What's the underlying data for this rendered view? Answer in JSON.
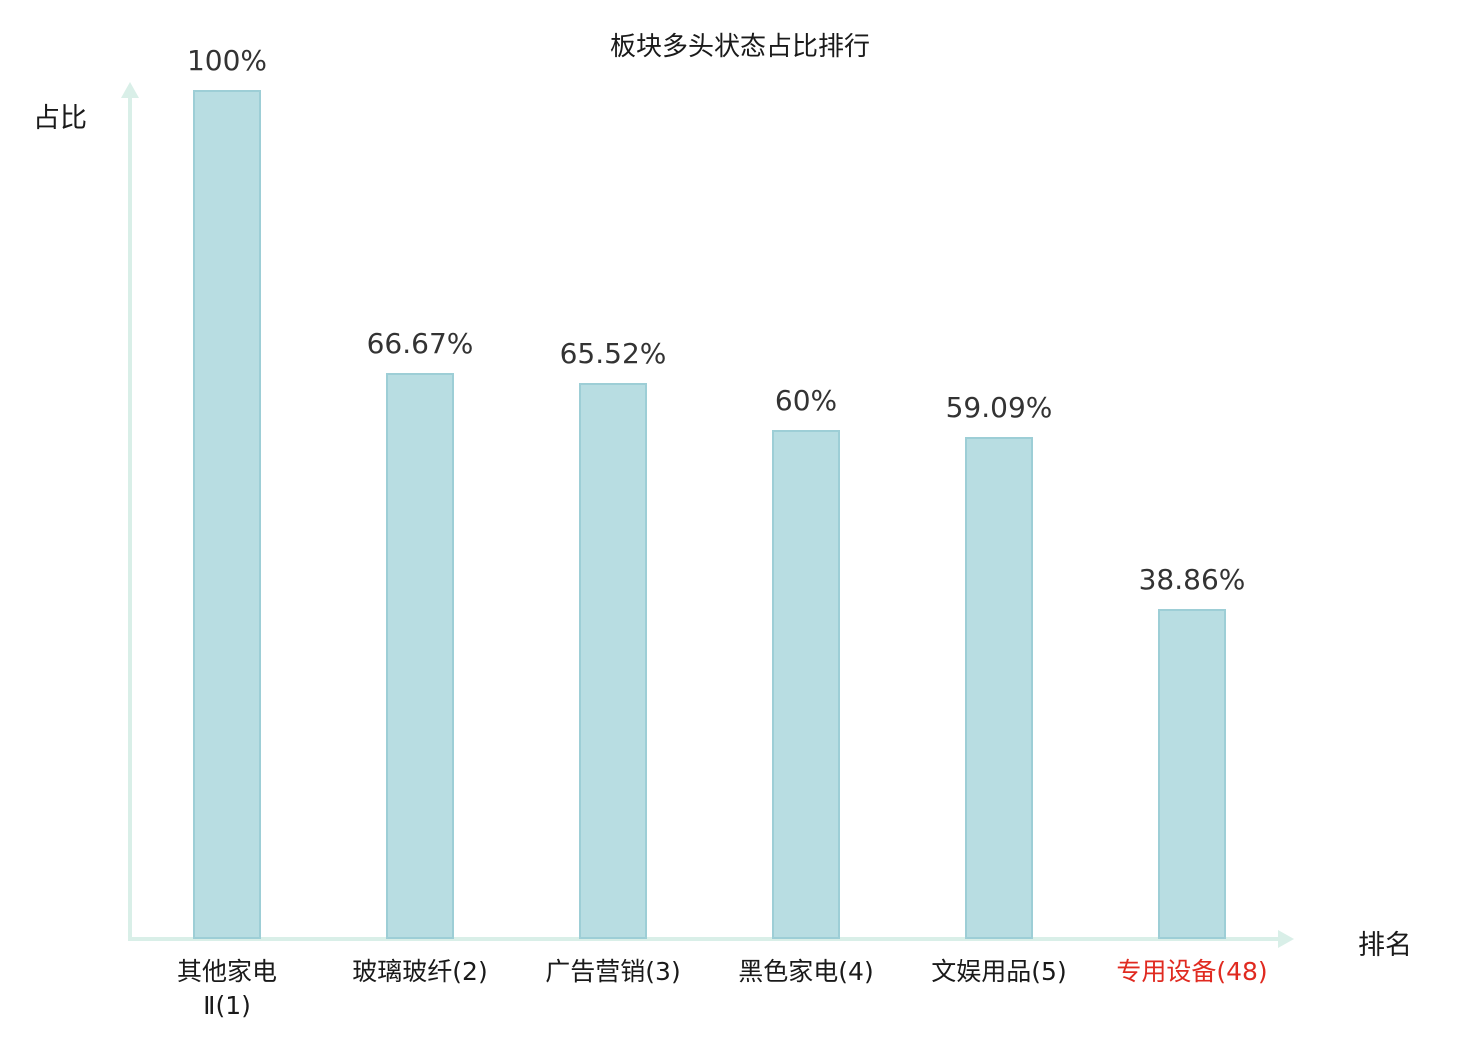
{
  "title": "板块多头状态占比排行",
  "axes": {
    "y_label": "占比",
    "x_label": "排名"
  },
  "colors": {
    "bar_fill": "#b8dde2",
    "bar_border": "#9dced6",
    "axis": "#d9efe8",
    "text": "#333333",
    "highlight": "#e02a20"
  },
  "chart_data": {
    "type": "bar",
    "title": "板块多头状态占比排行",
    "xlabel": "排名",
    "ylabel": "占比",
    "ylim": [
      0,
      100
    ],
    "grid": false,
    "legend": null,
    "categories": [
      "其他家电Ⅱ(1)",
      "玻璃玻纤(2)",
      "广告营销(3)",
      "黑色家电(4)",
      "文娱用品(5)",
      "专用设备(48)"
    ],
    "values": [
      100,
      66.67,
      65.52,
      60,
      59.09,
      38.86
    ],
    "bars": [
      {
        "label_lines": [
          "其他家电",
          "Ⅱ(1)"
        ],
        "value": 100,
        "value_label": "100%",
        "highlight": false
      },
      {
        "label_lines": [
          "玻璃玻纤(2)"
        ],
        "value": 66.67,
        "value_label": "66.67%",
        "highlight": false
      },
      {
        "label_lines": [
          "广告营销(3)"
        ],
        "value": 65.52,
        "value_label": "65.52%",
        "highlight": false
      },
      {
        "label_lines": [
          "黑色家电(4)"
        ],
        "value": 60,
        "value_label": "60%",
        "highlight": false
      },
      {
        "label_lines": [
          "文娱用品(5)"
        ],
        "value": 59.09,
        "value_label": "59.09%",
        "highlight": false
      },
      {
        "label_lines": [
          "专用设备(48)"
        ],
        "value": 38.86,
        "value_label": "38.86%",
        "highlight": true
      }
    ]
  }
}
